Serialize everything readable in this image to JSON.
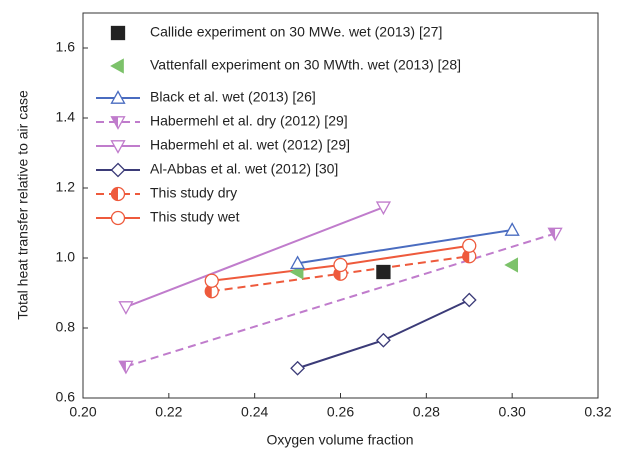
{
  "chart_data": {
    "type": "line",
    "x_label": "Oxygen volume fraction",
    "y_label": "Total heat transfer relative to air case",
    "xlim": [
      0.2,
      0.32
    ],
    "xticks": [
      {
        "value": 0.2,
        "label": "0.20"
      },
      {
        "value": 0.22,
        "label": "0.22"
      },
      {
        "value": 0.24,
        "label": "0.24"
      },
      {
        "value": 0.26,
        "label": "0.26"
      },
      {
        "value": 0.28,
        "label": "0.28"
      },
      {
        "value": 0.3,
        "label": "0.30"
      },
      {
        "value": 0.32,
        "label": "0.32"
      }
    ],
    "ylim": [
      0.6,
      1.7
    ],
    "yticks": [
      0.6,
      0.8,
      {
        "value": 1,
        "label": "1.0"
      },
      1.2,
      1.4,
      1.6
    ],
    "series": [
      {
        "name": "Callide experiment on 30 MWe. wet (2013) [27]",
        "color": "#222222",
        "marker": "square",
        "fill": "full",
        "line": "none",
        "x": [
          0.27
        ],
        "values": [
          0.96
        ]
      },
      {
        "name": "Vattenfall experiment on 30 MWth. wet (2013) [28]",
        "color": "#7cc26a",
        "marker": "triangle-left",
        "fill": "full",
        "line": "none",
        "x": [
          0.25,
          0.3
        ],
        "values": [
          0.96,
          0.98
        ]
      },
      {
        "name": "Black et al. wet (2013) [26]",
        "color": "#4a6cc0",
        "marker": "triangle-up",
        "fill": "none",
        "line": "solid",
        "x": [
          0.25,
          0.3
        ],
        "values": [
          0.985,
          1.08
        ]
      },
      {
        "name": "Habermehl et al. dry (2012) [29]",
        "color": "#c07ccc",
        "marker": "triangle-down",
        "fill": "half",
        "line": "dashed",
        "x": [
          0.21,
          0.31
        ],
        "values": [
          0.69,
          1.07
        ]
      },
      {
        "name": "Habermehl et al. wet (2012) [29]",
        "color": "#c07ccc",
        "marker": "triangle-down",
        "fill": "none",
        "line": "solid",
        "x": [
          0.21,
          0.27
        ],
        "values": [
          0.86,
          1.145
        ]
      },
      {
        "name": "Al-Abbas et al. wet (2012) [30]",
        "color": "#3b3b78",
        "marker": "diamond",
        "fill": "none",
        "line": "solid",
        "x": [
          0.25,
          0.27,
          0.29
        ],
        "values": [
          0.685,
          0.765,
          0.88
        ]
      },
      {
        "name": "This study dry",
        "color": "#ee5a3c",
        "marker": "circle",
        "fill": "half",
        "line": "dashed",
        "x": [
          0.23,
          0.26,
          0.29
        ],
        "values": [
          0.905,
          0.955,
          1.005
        ]
      },
      {
        "name": "This study wet",
        "color": "#ee5a3c",
        "marker": "circle",
        "fill": "none",
        "line": "solid",
        "x": [
          0.23,
          0.26,
          0.29
        ],
        "values": [
          0.935,
          0.98,
          1.035
        ]
      }
    ]
  }
}
